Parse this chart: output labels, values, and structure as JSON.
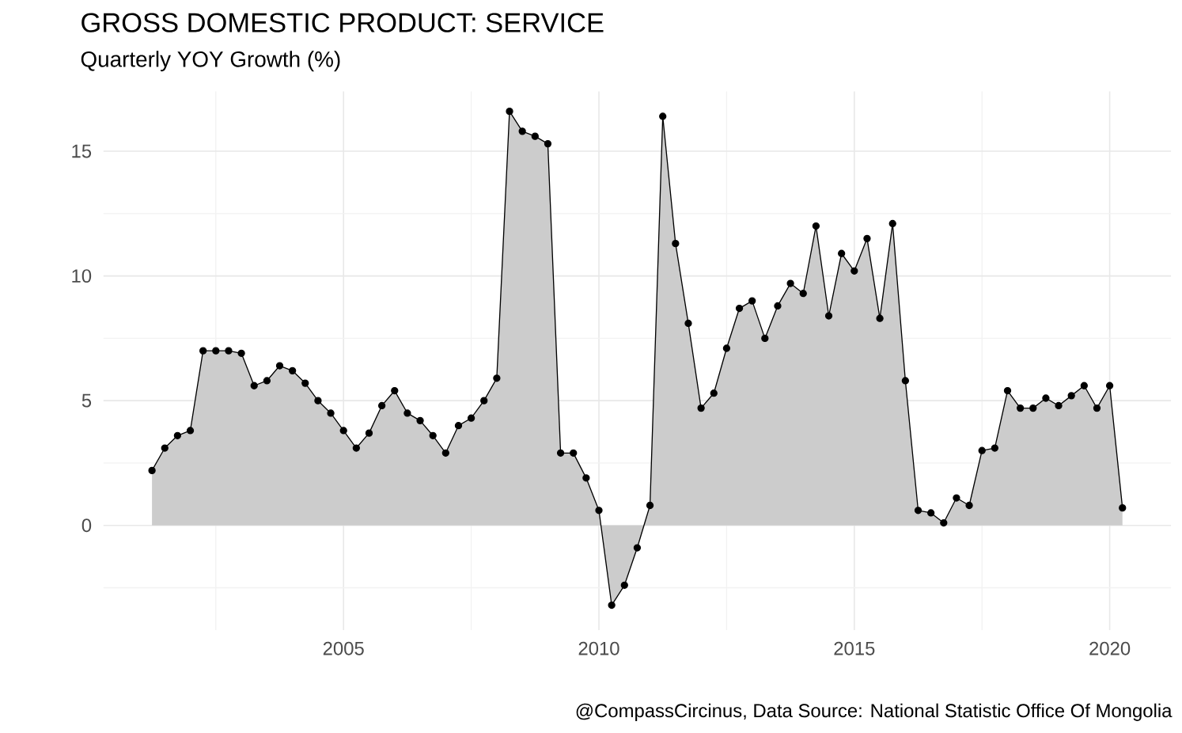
{
  "chart_data": {
    "type": "area",
    "title": "GROSS DOMESTIC PRODUCT: SERVICE",
    "subtitle": "Quarterly YOY Growth (%)",
    "annotations": [
      "@CompassCircinus, Data Source: National Statistic Office Of Mongolia"
    ],
    "x": [
      2001.25,
      2001.5,
      2001.75,
      2002.0,
      2002.25,
      2002.5,
      2002.75,
      2003.0,
      2003.25,
      2003.5,
      2003.75,
      2004.0,
      2004.25,
      2004.5,
      2004.75,
      2005.0,
      2005.25,
      2005.5,
      2005.75,
      2006.0,
      2006.25,
      2006.5,
      2006.75,
      2007.0,
      2007.25,
      2007.5,
      2007.75,
      2008.0,
      2008.25,
      2008.5,
      2008.75,
      2009.0,
      2009.25,
      2009.5,
      2009.75,
      2010.0,
      2010.25,
      2010.5,
      2010.75,
      2011.0,
      2011.25,
      2011.5,
      2011.75,
      2012.0,
      2012.25,
      2012.5,
      2012.75,
      2013.0,
      2013.25,
      2013.5,
      2013.75,
      2014.0,
      2014.25,
      2014.5,
      2014.75,
      2015.0,
      2015.25,
      2015.5,
      2015.75,
      2016.0,
      2016.25,
      2016.5,
      2016.75,
      2017.0,
      2017.25,
      2017.5,
      2017.75,
      2018.0,
      2018.25,
      2018.5,
      2018.75,
      2019.0,
      2019.25,
      2019.5,
      2019.75,
      2020.0,
      2020.25
    ],
    "values": [
      2.2,
      3.1,
      3.6,
      3.8,
      7.0,
      7.0,
      7.0,
      6.9,
      5.6,
      5.8,
      6.4,
      6.2,
      5.7,
      5.0,
      4.5,
      3.8,
      3.1,
      3.7,
      4.8,
      5.4,
      4.5,
      4.2,
      3.6,
      2.9,
      4.0,
      4.3,
      5.0,
      5.9,
      16.6,
      15.8,
      15.6,
      15.3,
      2.9,
      2.9,
      1.9,
      0.6,
      -3.2,
      -2.4,
      -0.9,
      0.8,
      16.4,
      11.3,
      8.1,
      4.7,
      5.3,
      7.1,
      8.7,
      9.0,
      7.5,
      8.8,
      9.7,
      9.3,
      12.0,
      8.4,
      10.9,
      10.2,
      11.5,
      8.3,
      12.1,
      5.8,
      0.6,
      0.5,
      0.1,
      1.1,
      0.8,
      3.0,
      3.1,
      5.4,
      4.7,
      4.7,
      5.1,
      4.8,
      5.2,
      5.6,
      4.7,
      5.6,
      0.7
    ],
    "color": "#cccccc",
    "marker": "circle",
    "grid": true,
    "xlim": [
      2000.3,
      2021.2
    ],
    "ylim": [
      -4.2,
      17.4
    ],
    "xticks": [
      2005,
      2010,
      2015,
      2020
    ],
    "yticks": [
      0,
      5,
      10,
      15
    ]
  }
}
